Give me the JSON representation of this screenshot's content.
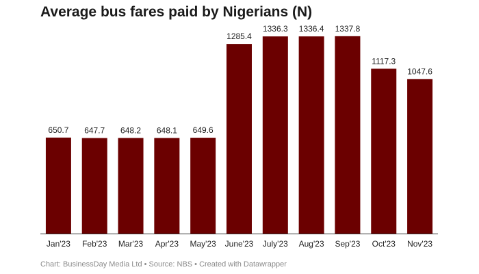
{
  "chart_data": {
    "type": "bar",
    "title": "Average bus fares paid by Nigerians (N)",
    "categories": [
      "Jan'23",
      "Feb'23",
      "Mar'23",
      "Apr'23",
      "May'23",
      "June'23",
      "July'23",
      "Aug'23",
      "Sep'23",
      "Oct'23",
      "Nov'23"
    ],
    "values": [
      650.7,
      647.7,
      648.2,
      648.1,
      649.6,
      1285.4,
      1336.3,
      1336.4,
      1337.8,
      1117.3,
      1047.6
    ],
    "value_labels": [
      "650.7",
      "647.7",
      "648.2",
      "648.1",
      "649.6",
      "1285.4",
      "1336.3",
      "1336.4",
      "1337.8",
      "1117.3",
      "1047.6"
    ],
    "xlabel": "",
    "ylabel": "",
    "ylim": [
      0,
      1400
    ],
    "grid": false,
    "bar_color": "#6b0000",
    "axis_color": "#333333"
  },
  "footer": "Chart: BusinessDay Media Ltd • Source: NBS • Created with Datawrapper"
}
